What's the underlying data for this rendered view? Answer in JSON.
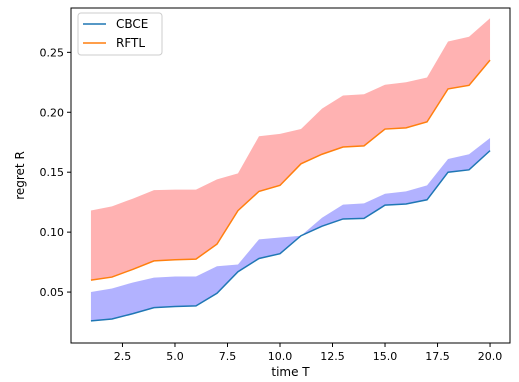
{
  "chart_data": {
    "type": "line",
    "xlabel": "time T",
    "ylabel": "regret R",
    "xlim": [
      0.05,
      20.95
    ],
    "ylim": [
      0.0075,
      0.287
    ],
    "xticks": [
      2.5,
      5.0,
      7.5,
      10.0,
      12.5,
      15.0,
      17.5,
      20.0
    ],
    "xtick_labels": [
      "2.5",
      "5.0",
      "7.5",
      "10.0",
      "12.5",
      "15.0",
      "17.5",
      "20.0"
    ],
    "yticks": [
      0.05,
      0.1,
      0.15,
      0.2,
      0.25
    ],
    "ytick_labels": [
      "0.05",
      "0.10",
      "0.15",
      "0.20",
      "0.25"
    ],
    "legend_position": "top-left",
    "grid": false,
    "x": [
      1,
      2,
      3,
      4,
      5,
      6,
      7,
      8,
      9,
      10,
      11,
      12,
      13,
      14,
      15,
      16,
      17,
      18,
      19,
      20
    ],
    "series": [
      {
        "name": "CBCE",
        "color": "#1f77b4",
        "band_color": "#0000ff",
        "values": [
          0.026,
          0.0275,
          0.032,
          0.037,
          0.038,
          0.0385,
          0.049,
          0.067,
          0.078,
          0.082,
          0.097,
          0.105,
          0.111,
          0.1115,
          0.1225,
          0.1235,
          0.127,
          0.15,
          0.152,
          0.168
        ],
        "upper": [
          0.05,
          0.053,
          0.058,
          0.062,
          0.063,
          0.063,
          0.0715,
          0.073,
          0.094,
          0.0955,
          0.097,
          0.112,
          0.123,
          0.124,
          0.132,
          0.134,
          0.139,
          0.161,
          0.165,
          0.1785
        ]
      },
      {
        "name": "RFTL",
        "color": "#ff7f0e",
        "band_color": "#ff0000",
        "values": [
          0.06,
          0.0625,
          0.069,
          0.076,
          0.077,
          0.0775,
          0.09,
          0.118,
          0.134,
          0.139,
          0.157,
          0.165,
          0.171,
          0.172,
          0.186,
          0.187,
          0.192,
          0.2195,
          0.2225,
          0.2435
        ],
        "upper": [
          0.118,
          0.1215,
          0.128,
          0.135,
          0.1355,
          0.1355,
          0.144,
          0.149,
          0.18,
          0.182,
          0.186,
          0.203,
          0.214,
          0.215,
          0.223,
          0.225,
          0.229,
          0.259,
          0.263,
          0.2785
        ]
      }
    ]
  }
}
